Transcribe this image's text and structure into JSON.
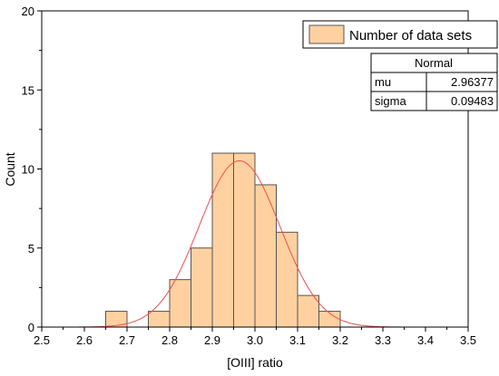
{
  "chart_data": {
    "type": "bar",
    "xlabel": "[OIII] ratio",
    "ylabel": "Count",
    "xlim": [
      2.5,
      3.5
    ],
    "ylim": [
      0,
      20
    ],
    "x_ticks": [
      "2.5",
      "2.6",
      "2.7",
      "2.8",
      "2.9",
      "3.0",
      "3.1",
      "3.2",
      "3.3",
      "3.4",
      "3.5"
    ],
    "y_ticks": [
      "0",
      "5",
      "10",
      "15",
      "20"
    ],
    "bin_width": 0.05,
    "bins": [
      {
        "start": 2.65,
        "count": 1
      },
      {
        "start": 2.75,
        "count": 1
      },
      {
        "start": 2.8,
        "count": 3
      },
      {
        "start": 2.85,
        "count": 5
      },
      {
        "start": 2.9,
        "count": 11
      },
      {
        "start": 2.95,
        "count": 11
      },
      {
        "start": 3.0,
        "count": 9
      },
      {
        "start": 3.05,
        "count": 6
      },
      {
        "start": 3.1,
        "count": 2
      },
      {
        "start": 3.15,
        "count": 1
      }
    ],
    "legend": {
      "label": "Number of data sets",
      "placement": "top-right"
    },
    "fit": {
      "distribution": "Normal",
      "parameters": [
        {
          "name": "mu",
          "value": "2.96377"
        },
        {
          "name": "sigma",
          "value": "0.09483"
        }
      ]
    },
    "grid": false,
    "colors": {
      "bar_fill": "#ffd1a0",
      "bar_stroke": "#555555",
      "fit_curve": "#e8504f"
    }
  }
}
